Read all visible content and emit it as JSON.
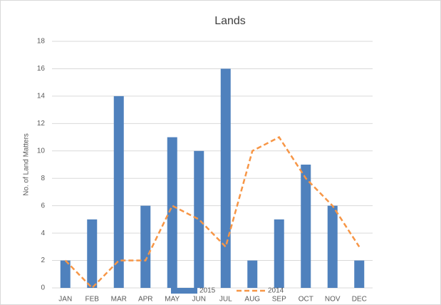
{
  "chart_data": {
    "type": "bar",
    "title": "Lands",
    "y_label": "No. of Land Matters",
    "categories": [
      "JAN",
      "FEB",
      "MAR",
      "APR",
      "MAY",
      "JUN",
      "JUL",
      "AUG",
      "SEP",
      "OCT",
      "NOV",
      "DEC"
    ],
    "series": [
      {
        "name": "2015",
        "type": "bar",
        "color": "#4f81bd",
        "values": [
          2,
          5,
          14,
          6,
          11,
          10,
          16,
          2,
          5,
          9,
          6,
          2
        ]
      },
      {
        "name": "2014",
        "type": "line",
        "color": "#f79646",
        "dashed": true,
        "values": [
          2,
          0,
          2,
          2,
          6,
          5,
          3,
          10,
          11,
          8,
          6,
          3
        ]
      }
    ],
    "ylim": [
      0,
      18
    ],
    "yticks": [
      0,
      2,
      4,
      6,
      8,
      10,
      12,
      14,
      16,
      18
    ],
    "grid": true,
    "legend": "bottom"
  }
}
